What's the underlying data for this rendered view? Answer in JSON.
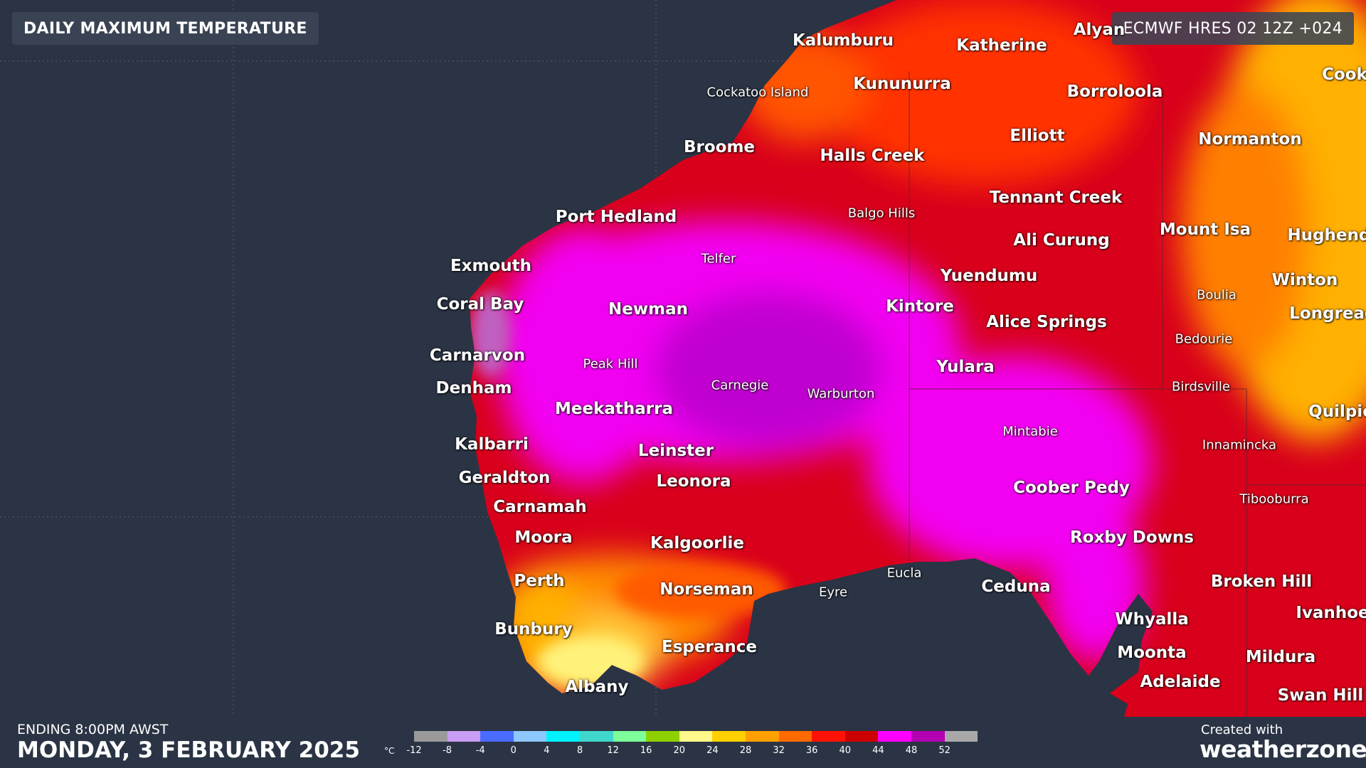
{
  "header": {
    "title": "DAILY MAXIMUM TEMPERATURE",
    "model": "ECMWF HRES 02 12Z +024"
  },
  "footer": {
    "ending": "ENDING 8:00PM AWST",
    "date": "MONDAY, 3 FEBRUARY 2025",
    "created_with": "Created with",
    "brand": "weatherzone°"
  },
  "legend": {
    "unit": "°C",
    "ticks": [
      "-12",
      "-8",
      "-4",
      "0",
      "4",
      "8",
      "12",
      "16",
      "20",
      "24",
      "28",
      "32",
      "36",
      "40",
      "44",
      "48",
      "52"
    ],
    "colors": [
      "#9a9a9a",
      "#c99df5",
      "#4a6bff",
      "#8cc8ff",
      "#00f2ff",
      "#3fd7cc",
      "#7dff9a",
      "#8fd100",
      "#fff88a",
      "#ffd000",
      "#ffa000",
      "#ff6a00",
      "#ff1200",
      "#cc0000",
      "#ff00ff",
      "#b300b3",
      "#a8a8a8"
    ]
  },
  "map_colors": {
    "sea": "#2b3444",
    "hot_44": "#f200f2",
    "hot_40": "#c8001a",
    "hot_36": "#ff1a00",
    "warm_32": "#ff7a00",
    "warm_28": "#ffb400",
    "mild_24": "#ffe040"
  },
  "places": {
    "kalumburu": "Kalumburu",
    "katherine": "Katherine",
    "alyangula": "Alyan",
    "cooktown": "Cook",
    "kununurra": "Kununurra",
    "borroloola": "Borroloola",
    "cockatoo_island": "Cockatoo Island",
    "elliott": "Elliott",
    "normanton": "Normanton",
    "broome": "Broome",
    "halls_creek": "Halls Creek",
    "tennant_creek": "Tennant Creek",
    "balgo_hills": "Balgo Hills",
    "port_hedland": "Port Hedland",
    "mount_isa": "Mount Isa",
    "hughenden": "Hughend",
    "ali_curung": "Ali Curung",
    "telfer": "Telfer",
    "exmouth": "Exmouth",
    "yuendumu": "Yuendumu",
    "winton": "Winton",
    "coral_bay": "Coral Bay",
    "newman": "Newman",
    "kintore": "Kintore",
    "boulia": "Boulia",
    "longreach": "Longreac",
    "alice_springs": "Alice Springs",
    "carnarvon": "Carnarvon",
    "bedourie": "Bedourie",
    "peak_hill": "Peak Hill",
    "yulara": "Yulara",
    "denham": "Denham",
    "carnegie": "Carnegie",
    "birdsville": "Birdsville",
    "warburton": "Warburton",
    "meekatharra": "Meekatharra",
    "quilpie": "Quilpie",
    "mintabie": "Mintabie",
    "kalbarri": "Kalbarri",
    "innamincka": "Innamincka",
    "leinster": "Leinster",
    "geraldton": "Geraldton",
    "leonora": "Leonora",
    "coober_pedy": "Coober Pedy",
    "carnamah": "Carnamah",
    "tibooburra": "Tibooburra",
    "moora": "Moora",
    "roxby_downs": "Roxby Downs",
    "kalgoorlie": "Kalgoorlie",
    "eucla": "Eucla",
    "perth": "Perth",
    "broken_hill": "Broken Hill",
    "ceduna": "Ceduna",
    "norseman": "Norseman",
    "eyre": "Eyre",
    "ivanhoe": "Ivanhoe",
    "whyalla": "Whyalla",
    "bunbury": "Bunbury",
    "esperance": "Esperance",
    "moonta": "Moonta",
    "mildura": "Mildura",
    "adelaide": "Adelaide",
    "swan_hill": "Swan Hill",
    "albany": "Albany"
  }
}
